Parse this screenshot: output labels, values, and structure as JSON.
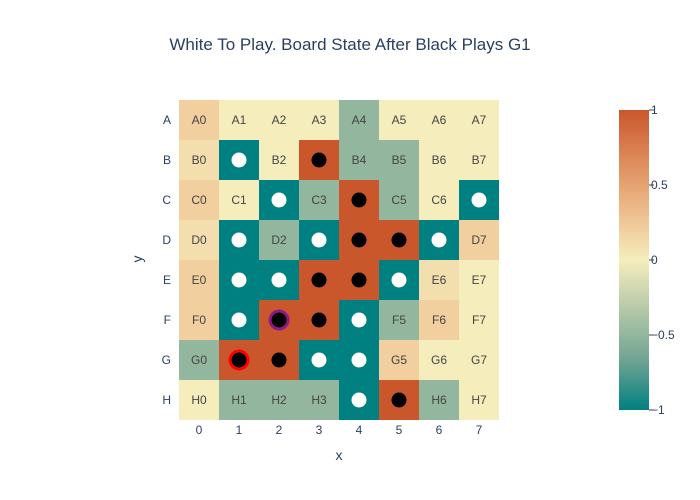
{
  "chart_data": {
    "type": "heatmap",
    "title": "White To Play. Board State After Black Plays G1",
    "xlabel": "x",
    "ylabel": "y",
    "x": [
      0,
      1,
      2,
      3,
      4,
      5,
      6,
      7
    ],
    "y": [
      "A",
      "B",
      "C",
      "D",
      "E",
      "F",
      "G",
      "H"
    ],
    "zlim": [
      -1,
      1
    ],
    "colorbar_ticks": [
      1,
      0.5,
      0,
      -0.5,
      -1
    ],
    "colorscale": [
      "#008080",
      "#70a494",
      "#b4c8a8",
      "#f6edbd",
      "#edbb8a",
      "#de8a5a",
      "#ca562c"
    ],
    "cells": [
      {
        "label": "A0",
        "z": 0.2
      },
      {
        "label": "A1",
        "z": 0.0
      },
      {
        "label": "A2",
        "z": 0.0
      },
      {
        "label": "A3",
        "z": 0.0
      },
      {
        "label": "A4",
        "z": -0.5
      },
      {
        "label": "A5",
        "z": 0.0
      },
      {
        "label": "A6",
        "z": 0.0
      },
      {
        "label": "A7",
        "z": 0.0
      },
      {
        "label": "B0",
        "z": 0.1
      },
      {
        "label": "B1",
        "z": -1,
        "stone": "white"
      },
      {
        "label": "B2",
        "z": 0.0
      },
      {
        "label": "B3",
        "z": 1,
        "stone": "black"
      },
      {
        "label": "B4",
        "z": -0.5
      },
      {
        "label": "B5",
        "z": -0.5
      },
      {
        "label": "B6",
        "z": 0.0
      },
      {
        "label": "B7",
        "z": 0.0
      },
      {
        "label": "C0",
        "z": 0.2
      },
      {
        "label": "C1",
        "z": 0.0
      },
      {
        "label": "C2",
        "z": -1,
        "stone": "white"
      },
      {
        "label": "C3",
        "z": -0.5
      },
      {
        "label": "C4",
        "z": 1,
        "stone": "black"
      },
      {
        "label": "C5",
        "z": -0.5
      },
      {
        "label": "C6",
        "z": 0.0
      },
      {
        "label": "C7",
        "z": -1,
        "stone": "white"
      },
      {
        "label": "D0",
        "z": 0.1
      },
      {
        "label": "D1",
        "z": -1,
        "stone": "white"
      },
      {
        "label": "D2",
        "z": -0.5
      },
      {
        "label": "D3",
        "z": -1,
        "stone": "white"
      },
      {
        "label": "D4",
        "z": 1,
        "stone": "black"
      },
      {
        "label": "D5",
        "z": 1,
        "stone": "black"
      },
      {
        "label": "D6",
        "z": -1,
        "stone": "white"
      },
      {
        "label": "D7",
        "z": 0.2
      },
      {
        "label": "E0",
        "z": 0.2
      },
      {
        "label": "E1",
        "z": -1,
        "stone": "white"
      },
      {
        "label": "E2",
        "z": -1,
        "stone": "white"
      },
      {
        "label": "E3",
        "z": 1,
        "stone": "black"
      },
      {
        "label": "E4",
        "z": 1,
        "stone": "black"
      },
      {
        "label": "E5",
        "z": -1,
        "stone": "white"
      },
      {
        "label": "E6",
        "z": 0.1
      },
      {
        "label": "E7",
        "z": 0.0
      },
      {
        "label": "F0",
        "z": 0.2
      },
      {
        "label": "F1",
        "z": -1,
        "stone": "white"
      },
      {
        "label": "F2",
        "z": 1,
        "stone": "black",
        "ring": "#8b1a8b"
      },
      {
        "label": "F3",
        "z": 1,
        "stone": "black"
      },
      {
        "label": "F4",
        "z": -1,
        "stone": "white"
      },
      {
        "label": "F5",
        "z": -0.5
      },
      {
        "label": "F6",
        "z": 0.2
      },
      {
        "label": "F7",
        "z": 0.0
      },
      {
        "label": "G0",
        "z": -0.5
      },
      {
        "label": "G1",
        "z": 1,
        "stone": "black",
        "ring": "#ff0000"
      },
      {
        "label": "G2",
        "z": 1,
        "stone": "black"
      },
      {
        "label": "G3",
        "z": -1,
        "stone": "white"
      },
      {
        "label": "G4",
        "z": -1,
        "stone": "white"
      },
      {
        "label": "G5",
        "z": 0.2
      },
      {
        "label": "G6",
        "z": 0.0
      },
      {
        "label": "G7",
        "z": 0.0
      },
      {
        "label": "H0",
        "z": 0.0
      },
      {
        "label": "H1",
        "z": -0.5
      },
      {
        "label": "H2",
        "z": -0.5
      },
      {
        "label": "H3",
        "z": -0.5
      },
      {
        "label": "H4",
        "z": -1,
        "stone": "white"
      },
      {
        "label": "H5",
        "z": 1,
        "stone": "black"
      },
      {
        "label": "H6",
        "z": -0.5
      },
      {
        "label": "H7",
        "z": 0.0
      }
    ]
  }
}
